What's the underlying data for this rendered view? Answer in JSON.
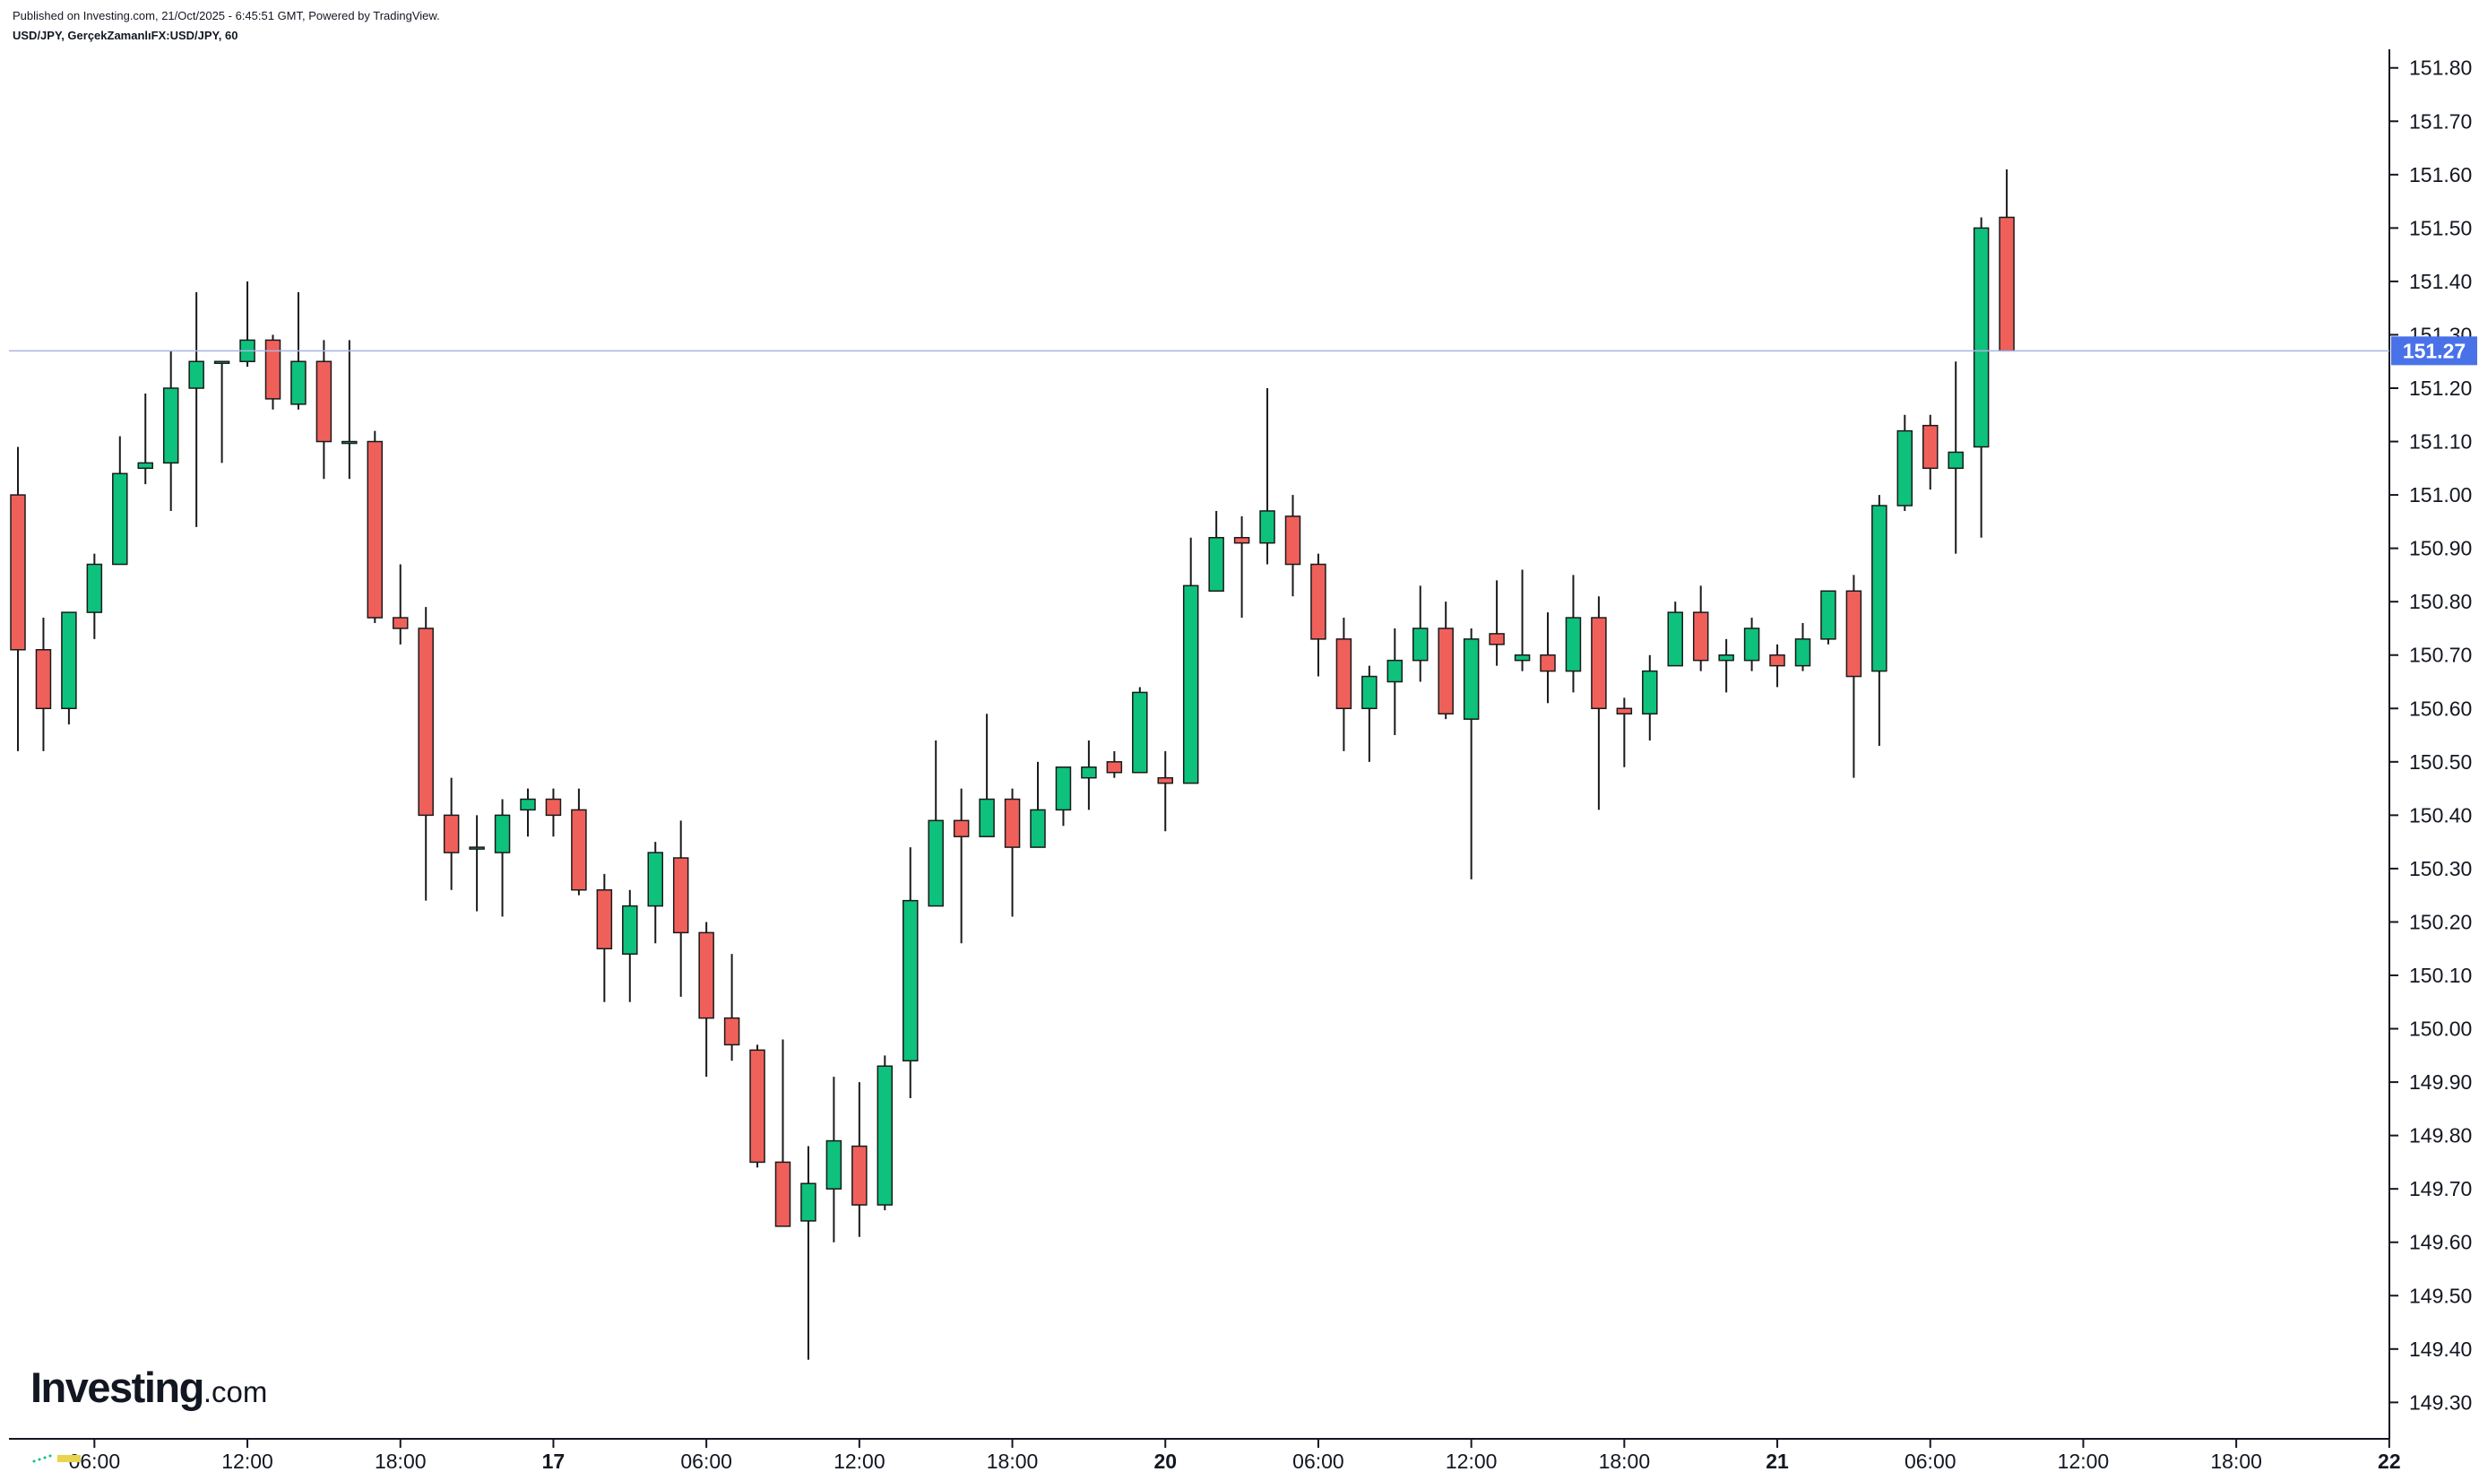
{
  "header": {
    "published": "Published on Investing.com, 21/Oct/2025 - 6:45:51 GMT, Powered by TradingView.",
    "symbol": "USD/JPY, GerçekZamanlıFX:USD/JPY, 60"
  },
  "logo": {
    "main": "Investing",
    "suffix": ".com"
  },
  "colors": {
    "up": "#0ec17c",
    "down": "#f0605a",
    "border": "#1a1a1a",
    "price_line": "#aab4e6",
    "price_tag": "#4a72e8",
    "axis": "#131722"
  },
  "chart_data": {
    "type": "candlestick",
    "interval": "60",
    "y_axis": {
      "ticks": [
        "149.30",
        "149.40",
        "149.50",
        "149.60",
        "149.70",
        "149.80",
        "149.90",
        "150.00",
        "150.10",
        "150.20",
        "150.30",
        "150.40",
        "150.50",
        "150.60",
        "150.70",
        "150.80",
        "150.90",
        "151.00",
        "151.10",
        "151.20",
        "151.30",
        "151.40",
        "151.50",
        "151.60",
        "151.70",
        "151.80"
      ],
      "ylim": [
        149.22,
        151.86
      ],
      "position": "right"
    },
    "x_axis": {
      "ticks": [
        {
          "i": 3,
          "label": "06:00",
          "bold": false
        },
        {
          "i": 9,
          "label": "12:00",
          "bold": false
        },
        {
          "i": 15,
          "label": "18:00",
          "bold": false
        },
        {
          "i": 21,
          "label": "17",
          "bold": true
        },
        {
          "i": 27,
          "label": "06:00",
          "bold": false
        },
        {
          "i": 33,
          "label": "12:00",
          "bold": false
        },
        {
          "i": 39,
          "label": "18:00",
          "bold": false
        },
        {
          "i": 45,
          "label": "20",
          "bold": true
        },
        {
          "i": 51,
          "label": "06:00",
          "bold": false
        },
        {
          "i": 57,
          "label": "12:00",
          "bold": false
        },
        {
          "i": 63,
          "label": "18:00",
          "bold": false
        },
        {
          "i": 69,
          "label": "21",
          "bold": true
        },
        {
          "i": 75,
          "label": "06:00",
          "bold": false
        },
        {
          "i": 81,
          "label": "12:00",
          "bold": false
        },
        {
          "i": 87,
          "label": "18:00",
          "bold": false
        },
        {
          "i": 93,
          "label": "22",
          "bold": true
        }
      ]
    },
    "last_price": "151.27",
    "last_price_value": 151.27,
    "candles": [
      {
        "o": 151.0,
        "h": 151.09,
        "l": 150.52,
        "c": 150.71
      },
      {
        "o": 150.71,
        "h": 150.77,
        "l": 150.52,
        "c": 150.6
      },
      {
        "o": 150.6,
        "h": 150.78,
        "l": 150.57,
        "c": 150.78
      },
      {
        "o": 150.78,
        "h": 150.89,
        "l": 150.73,
        "c": 150.87
      },
      {
        "o": 150.87,
        "h": 151.11,
        "l": 150.87,
        "c": 151.04
      },
      {
        "o": 151.05,
        "h": 151.19,
        "l": 151.02,
        "c": 151.06
      },
      {
        "o": 151.06,
        "h": 151.27,
        "l": 150.97,
        "c": 151.2
      },
      {
        "o": 151.2,
        "h": 151.38,
        "l": 150.94,
        "c": 151.25
      },
      {
        "o": 151.25,
        "h": 151.25,
        "l": 151.06,
        "c": 151.25
      },
      {
        "o": 151.25,
        "h": 151.4,
        "l": 151.24,
        "c": 151.29
      },
      {
        "o": 151.29,
        "h": 151.3,
        "l": 151.16,
        "c": 151.18
      },
      {
        "o": 151.17,
        "h": 151.38,
        "l": 151.16,
        "c": 151.25
      },
      {
        "o": 151.25,
        "h": 151.29,
        "l": 151.03,
        "c": 151.1
      },
      {
        "o": 151.1,
        "h": 151.29,
        "l": 151.03,
        "c": 151.1
      },
      {
        "o": 151.1,
        "h": 151.12,
        "l": 150.76,
        "c": 150.77
      },
      {
        "o": 150.77,
        "h": 150.87,
        "l": 150.72,
        "c": 150.75
      },
      {
        "o": 150.75,
        "h": 150.79,
        "l": 150.24,
        "c": 150.4
      },
      {
        "o": 150.4,
        "h": 150.47,
        "l": 150.26,
        "c": 150.33
      },
      {
        "o": 150.34,
        "h": 150.4,
        "l": 150.22,
        "c": 150.34
      },
      {
        "o": 150.33,
        "h": 150.43,
        "l": 150.21,
        "c": 150.4
      },
      {
        "o": 150.41,
        "h": 150.45,
        "l": 150.36,
        "c": 150.43
      },
      {
        "o": 150.43,
        "h": 150.45,
        "l": 150.36,
        "c": 150.4
      },
      {
        "o": 150.41,
        "h": 150.45,
        "l": 150.25,
        "c": 150.26
      },
      {
        "o": 150.26,
        "h": 150.29,
        "l": 150.05,
        "c": 150.15
      },
      {
        "o": 150.14,
        "h": 150.26,
        "l": 150.05,
        "c": 150.23
      },
      {
        "o": 150.23,
        "h": 150.35,
        "l": 150.16,
        "c": 150.33
      },
      {
        "o": 150.32,
        "h": 150.39,
        "l": 150.06,
        "c": 150.18
      },
      {
        "o": 150.18,
        "h": 150.2,
        "l": 149.91,
        "c": 150.02
      },
      {
        "o": 150.02,
        "h": 150.14,
        "l": 149.94,
        "c": 149.97
      },
      {
        "o": 149.96,
        "h": 149.97,
        "l": 149.74,
        "c": 149.75
      },
      {
        "o": 149.75,
        "h": 149.98,
        "l": 149.63,
        "c": 149.63
      },
      {
        "o": 149.64,
        "h": 149.78,
        "l": 149.38,
        "c": 149.71
      },
      {
        "o": 149.7,
        "h": 149.91,
        "l": 149.6,
        "c": 149.79
      },
      {
        "o": 149.78,
        "h": 149.9,
        "l": 149.61,
        "c": 149.67
      },
      {
        "o": 149.67,
        "h": 149.95,
        "l": 149.66,
        "c": 149.93
      },
      {
        "o": 149.94,
        "h": 150.34,
        "l": 149.87,
        "c": 150.24
      },
      {
        "o": 150.23,
        "h": 150.54,
        "l": 150.23,
        "c": 150.39
      },
      {
        "o": 150.39,
        "h": 150.45,
        "l": 150.16,
        "c": 150.36
      },
      {
        "o": 150.36,
        "h": 150.59,
        "l": 150.36,
        "c": 150.43
      },
      {
        "o": 150.43,
        "h": 150.45,
        "l": 150.21,
        "c": 150.34
      },
      {
        "o": 150.34,
        "h": 150.5,
        "l": 150.34,
        "c": 150.41
      },
      {
        "o": 150.41,
        "h": 150.49,
        "l": 150.38,
        "c": 150.49
      },
      {
        "o": 150.47,
        "h": 150.54,
        "l": 150.41,
        "c": 150.49
      },
      {
        "o": 150.5,
        "h": 150.52,
        "l": 150.47,
        "c": 150.48
      },
      {
        "o": 150.48,
        "h": 150.64,
        "l": 150.48,
        "c": 150.63
      },
      {
        "o": 150.47,
        "h": 150.52,
        "l": 150.37,
        "c": 150.46
      },
      {
        "o": 150.46,
        "h": 150.92,
        "l": 150.46,
        "c": 150.83
      },
      {
        "o": 150.82,
        "h": 150.97,
        "l": 150.82,
        "c": 150.92
      },
      {
        "o": 150.92,
        "h": 150.96,
        "l": 150.77,
        "c": 150.91
      },
      {
        "o": 150.91,
        "h": 151.2,
        "l": 150.87,
        "c": 150.97
      },
      {
        "o": 150.96,
        "h": 151.0,
        "l": 150.81,
        "c": 150.87
      },
      {
        "o": 150.87,
        "h": 150.89,
        "l": 150.66,
        "c": 150.73
      },
      {
        "o": 150.73,
        "h": 150.77,
        "l": 150.52,
        "c": 150.6
      },
      {
        "o": 150.6,
        "h": 150.68,
        "l": 150.5,
        "c": 150.66
      },
      {
        "o": 150.65,
        "h": 150.75,
        "l": 150.55,
        "c": 150.69
      },
      {
        "o": 150.69,
        "h": 150.83,
        "l": 150.65,
        "c": 150.75
      },
      {
        "o": 150.75,
        "h": 150.8,
        "l": 150.58,
        "c": 150.59
      },
      {
        "o": 150.58,
        "h": 150.75,
        "l": 150.28,
        "c": 150.73
      },
      {
        "o": 150.74,
        "h": 150.84,
        "l": 150.68,
        "c": 150.72
      },
      {
        "o": 150.69,
        "h": 150.86,
        "l": 150.67,
        "c": 150.7
      },
      {
        "o": 150.7,
        "h": 150.78,
        "l": 150.61,
        "c": 150.67
      },
      {
        "o": 150.67,
        "h": 150.85,
        "l": 150.63,
        "c": 150.77
      },
      {
        "o": 150.77,
        "h": 150.81,
        "l": 150.41,
        "c": 150.6
      },
      {
        "o": 150.6,
        "h": 150.62,
        "l": 150.49,
        "c": 150.59
      },
      {
        "o": 150.59,
        "h": 150.7,
        "l": 150.54,
        "c": 150.67
      },
      {
        "o": 150.68,
        "h": 150.8,
        "l": 150.68,
        "c": 150.78
      },
      {
        "o": 150.78,
        "h": 150.83,
        "l": 150.67,
        "c": 150.69
      },
      {
        "o": 150.69,
        "h": 150.73,
        "l": 150.63,
        "c": 150.7
      },
      {
        "o": 150.69,
        "h": 150.77,
        "l": 150.67,
        "c": 150.75
      },
      {
        "o": 150.7,
        "h": 150.72,
        "l": 150.64,
        "c": 150.68
      },
      {
        "o": 150.68,
        "h": 150.76,
        "l": 150.67,
        "c": 150.73
      },
      {
        "o": 150.73,
        "h": 150.82,
        "l": 150.72,
        "c": 150.82
      },
      {
        "o": 150.82,
        "h": 150.85,
        "l": 150.47,
        "c": 150.66
      },
      {
        "o": 150.67,
        "h": 151.0,
        "l": 150.53,
        "c": 150.98
      },
      {
        "o": 150.98,
        "h": 151.15,
        "l": 150.97,
        "c": 151.12
      },
      {
        "o": 151.13,
        "h": 151.15,
        "l": 151.01,
        "c": 151.05
      },
      {
        "o": 151.05,
        "h": 151.25,
        "l": 150.89,
        "c": 151.08
      },
      {
        "o": 151.09,
        "h": 151.52,
        "l": 150.92,
        "c": 151.5
      },
      {
        "o": 151.52,
        "h": 151.61,
        "l": 151.27,
        "c": 151.27
      }
    ]
  }
}
